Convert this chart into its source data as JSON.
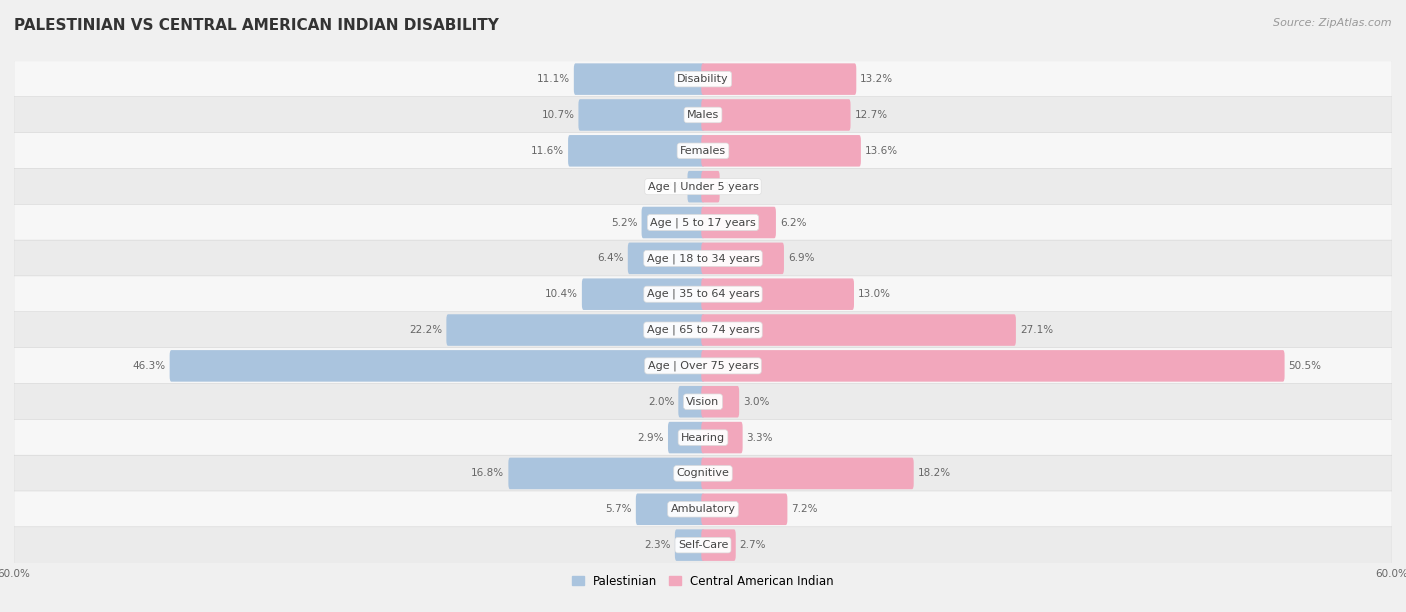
{
  "title": "PALESTINIAN VS CENTRAL AMERICAN INDIAN DISABILITY",
  "source": "Source: ZipAtlas.com",
  "categories": [
    "Disability",
    "Males",
    "Females",
    "Age | Under 5 years",
    "Age | 5 to 17 years",
    "Age | 18 to 34 years",
    "Age | 35 to 64 years",
    "Age | 65 to 74 years",
    "Age | Over 75 years",
    "Vision",
    "Hearing",
    "Cognitive",
    "Ambulatory",
    "Self-Care"
  ],
  "palestinian": [
    11.1,
    10.7,
    11.6,
    1.2,
    5.2,
    6.4,
    10.4,
    22.2,
    46.3,
    2.0,
    2.9,
    16.8,
    5.7,
    2.3
  ],
  "central_american": [
    13.2,
    12.7,
    13.6,
    1.3,
    6.2,
    6.9,
    13.0,
    27.1,
    50.5,
    3.0,
    3.3,
    18.2,
    7.2,
    2.7
  ],
  "max_val": 60.0,
  "palestinian_color": "#aac4de",
  "central_american_color": "#f2a7bc",
  "bar_height": 0.58,
  "background_color": "#f0f0f0",
  "row_color_light": "#f7f7f7",
  "row_color_dark": "#ebebeb",
  "title_fontsize": 11,
  "label_fontsize": 8,
  "value_fontsize": 7.5,
  "legend_fontsize": 8.5,
  "source_fontsize": 8
}
